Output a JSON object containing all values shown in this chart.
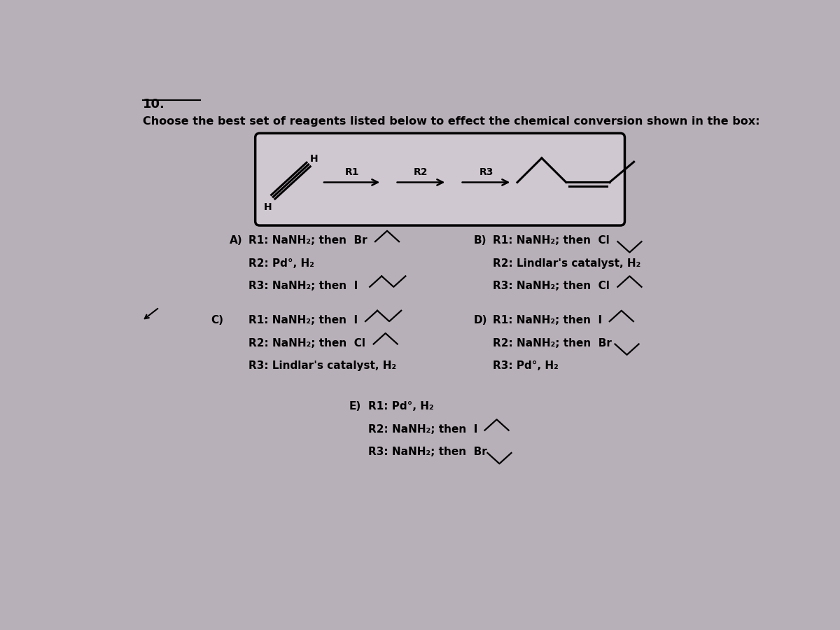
{
  "title_number": "10.",
  "question": "Choose the best set of reagents listed below to effect the chemical conversion shown in the box:",
  "bg_color": "#b8b0b8",
  "box_bg": "#d0c8d0",
  "text_color": "#000000",
  "font_size_question": 11.5,
  "font_size_answer": 11,
  "font_size_title": 13,
  "options": {
    "A": {
      "r1": "R1: NaNH₂; then  Br",
      "r2": "R2: Pd°, H₂",
      "r3": "R3: NaNH₂; then  I"
    },
    "B": {
      "r1": "R1: NaNH₂; then  Cl",
      "r2": "R2: Lindlar's catalyst, H₂",
      "r3": "R3: NaNH₂; then  Cl"
    },
    "C": {
      "r1": "R1: NaNH₂; then  I",
      "r2": "R2: NaNH₂; then  Cl",
      "r3": "R3: Lindlar's catalyst, H₂"
    },
    "D": {
      "r1": "R1: NaNH₂; then  I",
      "r2": "R2: NaNH₂; then  Br",
      "r3": "R3: Pd°, H₂"
    },
    "E": {
      "r1": "R1: Pd°, H₂",
      "r2": "R2: NaNH₂; then  I",
      "r3": "R3: NaNH₂; then  Br"
    }
  }
}
